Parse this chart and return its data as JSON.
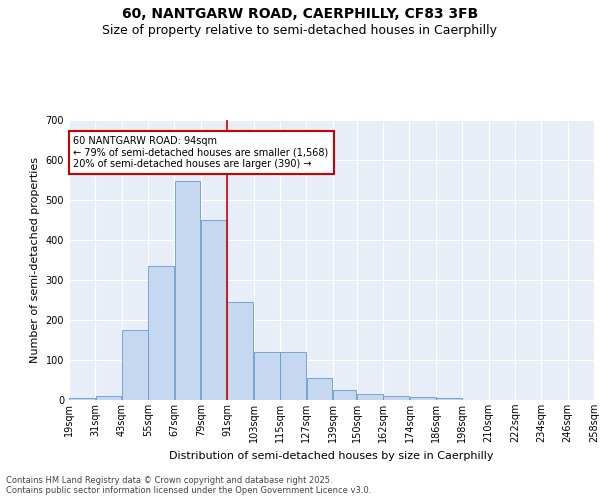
{
  "title_line1": "60, NANTGARW ROAD, CAERPHILLY, CF83 3FB",
  "title_line2": "Size of property relative to semi-detached houses in Caerphilly",
  "xlabel": "Distribution of semi-detached houses by size in Caerphilly",
  "ylabel": "Number of semi-detached properties",
  "bin_edges": [
    19,
    31,
    43,
    55,
    67,
    79,
    91,
    103,
    115,
    127,
    139,
    150,
    162,
    174,
    186,
    198,
    210,
    222,
    234,
    246,
    258
  ],
  "bin_labels": [
    "19sqm",
    "31sqm",
    "43sqm",
    "55sqm",
    "67sqm",
    "79sqm",
    "91sqm",
    "103sqm",
    "115sqm",
    "127sqm",
    "139sqm",
    "150sqm",
    "162sqm",
    "174sqm",
    "186sqm",
    "198sqm",
    "210sqm",
    "222sqm",
    "234sqm",
    "246sqm",
    "258sqm"
  ],
  "bar_heights": [
    5,
    10,
    175,
    335,
    548,
    450,
    245,
    120,
    120,
    55,
    25,
    15,
    10,
    8,
    5,
    0,
    0,
    0,
    0,
    0
  ],
  "bar_color": "#c5d8f0",
  "bar_edge_color": "#6699cc",
  "vline_x": 91,
  "vline_color": "#cc0000",
  "annotation_text": "60 NANTGARW ROAD: 94sqm\n← 79% of semi-detached houses are smaller (1,568)\n20% of semi-detached houses are larger (390) →",
  "annotation_box_color": "#cc0000",
  "ylim": [
    0,
    700
  ],
  "yticks": [
    0,
    100,
    200,
    300,
    400,
    500,
    600,
    700
  ],
  "background_color": "#e8eef8",
  "grid_color": "#ffffff",
  "footer_text": "Contains HM Land Registry data © Crown copyright and database right 2025.\nContains public sector information licensed under the Open Government Licence v3.0.",
  "title_fontsize": 10,
  "subtitle_fontsize": 9,
  "axis_label_fontsize": 8,
  "tick_fontsize": 7,
  "footer_fontsize": 6
}
